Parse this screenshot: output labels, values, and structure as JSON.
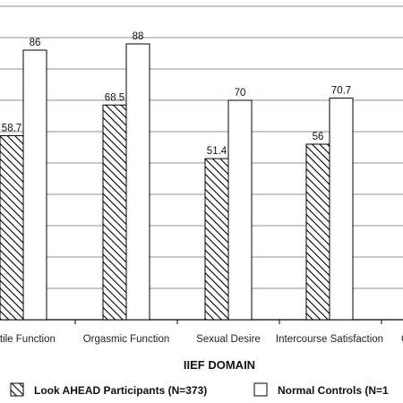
{
  "chart_data": {
    "type": "bar",
    "categories": [
      "Erectile Function",
      "Orgasmic Function",
      "Sexual Desire",
      "Intercourse Satisfaction",
      "Overall Satisfaction"
    ],
    "visible_category_text": [
      "ctile Function",
      "Orgasmic Function",
      "Sexual Desire",
      "Intercourse Satisfaction",
      "C"
    ],
    "series": [
      {
        "name": "Look AHEAD Participants (N=373)",
        "values": [
          58.7,
          68.5,
          51.4,
          56,
          null
        ],
        "labels": [
          "58.7",
          "68.5",
          "51.4",
          "56",
          ""
        ],
        "pattern": "diagonal-hatch"
      },
      {
        "name": "Normal Controls (N=1",
        "values": [
          86,
          88,
          70,
          70.7,
          null
        ],
        "labels": [
          "86",
          "88",
          "70",
          "70.7",
          ""
        ],
        "pattern": "white"
      }
    ],
    "xlabel": "IIEF DOMAIN",
    "ylabel": "",
    "ylim": [
      0,
      100
    ],
    "grid": true,
    "legend": "bottom"
  }
}
